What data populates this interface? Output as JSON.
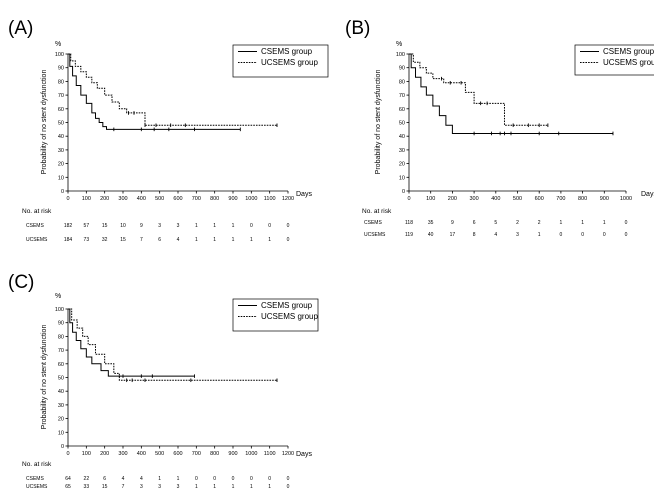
{
  "chart_data": [
    {
      "type": "line",
      "panel_label": "(A)",
      "y_unit": "%",
      "ylabel": "Probability of no stent dysfunction",
      "xlabel": "Days",
      "xlim": [
        0,
        1200
      ],
      "ylim": [
        0,
        100
      ],
      "x_ticks": [
        "0",
        "100",
        "200",
        "300",
        "400",
        "500",
        "600",
        "700",
        "800",
        "900",
        "1000",
        "1100",
        "1200"
      ],
      "y_ticks": [
        "0",
        "10",
        "20",
        "30",
        "40",
        "50",
        "60",
        "70",
        "80",
        "90",
        "100"
      ],
      "legend": [
        "CSEMS group",
        "UCSEMS group"
      ],
      "legend_position": "top-right",
      "series": [
        {
          "name": "CSEMS group",
          "style": "solid",
          "x": [
            0,
            10,
            25,
            45,
            70,
            100,
            130,
            150,
            170,
            190,
            210,
            940
          ],
          "y": [
            100,
            91,
            84,
            77,
            70,
            64,
            57,
            53,
            50,
            47,
            45,
            45
          ],
          "censored_x": [
            250,
            400,
            470,
            550,
            690,
            940
          ]
        },
        {
          "name": "UCSEMS group",
          "style": "dotted",
          "x": [
            0,
            15,
            40,
            70,
            100,
            130,
            160,
            200,
            240,
            280,
            320,
            420,
            1140
          ],
          "y": [
            100,
            95,
            91,
            87,
            83,
            79,
            75,
            70,
            65,
            60,
            57,
            48,
            48
          ],
          "censored_x": [
            330,
            360,
            420,
            480,
            560,
            640,
            1140
          ]
        }
      ],
      "risk_table": {
        "header": "No. at risk",
        "rows": [
          {
            "label": "CSEMS",
            "values": [
              "182",
              "57",
              "15",
              "10",
              "9",
              "3",
              "3",
              "1",
              "1",
              "1",
              "0",
              "0",
              "0"
            ]
          },
          {
            "label": "UCSEMS",
            "values": [
              "184",
              "73",
              "32",
              "15",
              "7",
              "6",
              "4",
              "1",
              "1",
              "1",
              "1",
              "1",
              "0"
            ]
          }
        ]
      }
    },
    {
      "type": "line",
      "panel_label": "(B)",
      "y_unit": "%",
      "ylabel": "Probability of no stent dysfunction",
      "xlabel": "Days",
      "xlim": [
        0,
        1000
      ],
      "ylim": [
        0,
        100
      ],
      "x_ticks": [
        "0",
        "100",
        "200",
        "300",
        "400",
        "500",
        "600",
        "700",
        "800",
        "900",
        "1000"
      ],
      "y_ticks": [
        "0",
        "10",
        "20",
        "30",
        "40",
        "50",
        "60",
        "70",
        "80",
        "90",
        "100"
      ],
      "legend": [
        "CSEMS group",
        "UCSEMS group"
      ],
      "legend_position": "top-right",
      "series": [
        {
          "name": "CSEMS group",
          "style": "solid",
          "x": [
            0,
            10,
            30,
            55,
            80,
            110,
            140,
            170,
            200,
            940
          ],
          "y": [
            100,
            90,
            83,
            76,
            70,
            62,
            55,
            48,
            42,
            42
          ],
          "censored_x": [
            300,
            380,
            420,
            440,
            470,
            600,
            690,
            940
          ]
        },
        {
          "name": "UCSEMS group",
          "style": "dotted",
          "x": [
            0,
            20,
            50,
            80,
            110,
            160,
            260,
            300,
            440,
            640
          ],
          "y": [
            100,
            94,
            90,
            86,
            82,
            79,
            72,
            64,
            48,
            48
          ],
          "censored_x": [
            150,
            190,
            240,
            330,
            360,
            480,
            550,
            600,
            640
          ]
        }
      ],
      "risk_table": {
        "header": "No. at risk",
        "rows": [
          {
            "label": "CSEMS",
            "values": [
              "118",
              "35",
              "9",
              "6",
              "5",
              "2",
              "2",
              "1",
              "1",
              "1",
              "0"
            ]
          },
          {
            "label": "UCSEMS",
            "values": [
              "119",
              "40",
              "17",
              "8",
              "4",
              "3",
              "1",
              "0",
              "0",
              "0",
              "0"
            ]
          }
        ]
      }
    },
    {
      "type": "line",
      "panel_label": "(C)",
      "y_unit": "%",
      "ylabel": "Probability of no stent dysfunction",
      "xlabel": "Days",
      "xlim": [
        0,
        1200
      ],
      "ylim": [
        0,
        100
      ],
      "x_ticks": [
        "0",
        "100",
        "200",
        "300",
        "400",
        "500",
        "600",
        "700",
        "800",
        "900",
        "1000",
        "1100",
        "1200"
      ],
      "y_ticks": [
        "0",
        "10",
        "20",
        "30",
        "40",
        "50",
        "60",
        "70",
        "80",
        "90",
        "100"
      ],
      "legend": [
        "CSEMS group",
        "UCSEMS group"
      ],
      "legend_position": "top-right",
      "series": [
        {
          "name": "CSEMS group",
          "style": "solid",
          "x": [
            0,
            10,
            25,
            45,
            70,
            100,
            130,
            180,
            220,
            690
          ],
          "y": [
            100,
            90,
            83,
            77,
            71,
            65,
            60,
            55,
            51,
            51
          ],
          "censored_x": [
            300,
            400,
            460,
            690
          ]
        },
        {
          "name": "UCSEMS group",
          "style": "dotted",
          "x": [
            0,
            20,
            50,
            80,
            110,
            150,
            200,
            250,
            280,
            1140
          ],
          "y": [
            100,
            92,
            86,
            80,
            74,
            67,
            60,
            53,
            48,
            48
          ],
          "censored_x": [
            320,
            350,
            420,
            670,
            1140
          ]
        }
      ],
      "risk_table": {
        "header": "No. at risk",
        "rows": [
          {
            "label": "CSEMS",
            "values": [
              "64",
              "22",
              "6",
              "4",
              "4",
              "1",
              "1",
              "0",
              "0",
              "0",
              "0",
              "0",
              "0"
            ]
          },
          {
            "label": "UCSEMS",
            "values": [
              "65",
              "33",
              "15",
              "7",
              "3",
              "3",
              "3",
              "1",
              "1",
              "1",
              "1",
              "1",
              "0"
            ]
          }
        ]
      }
    }
  ]
}
